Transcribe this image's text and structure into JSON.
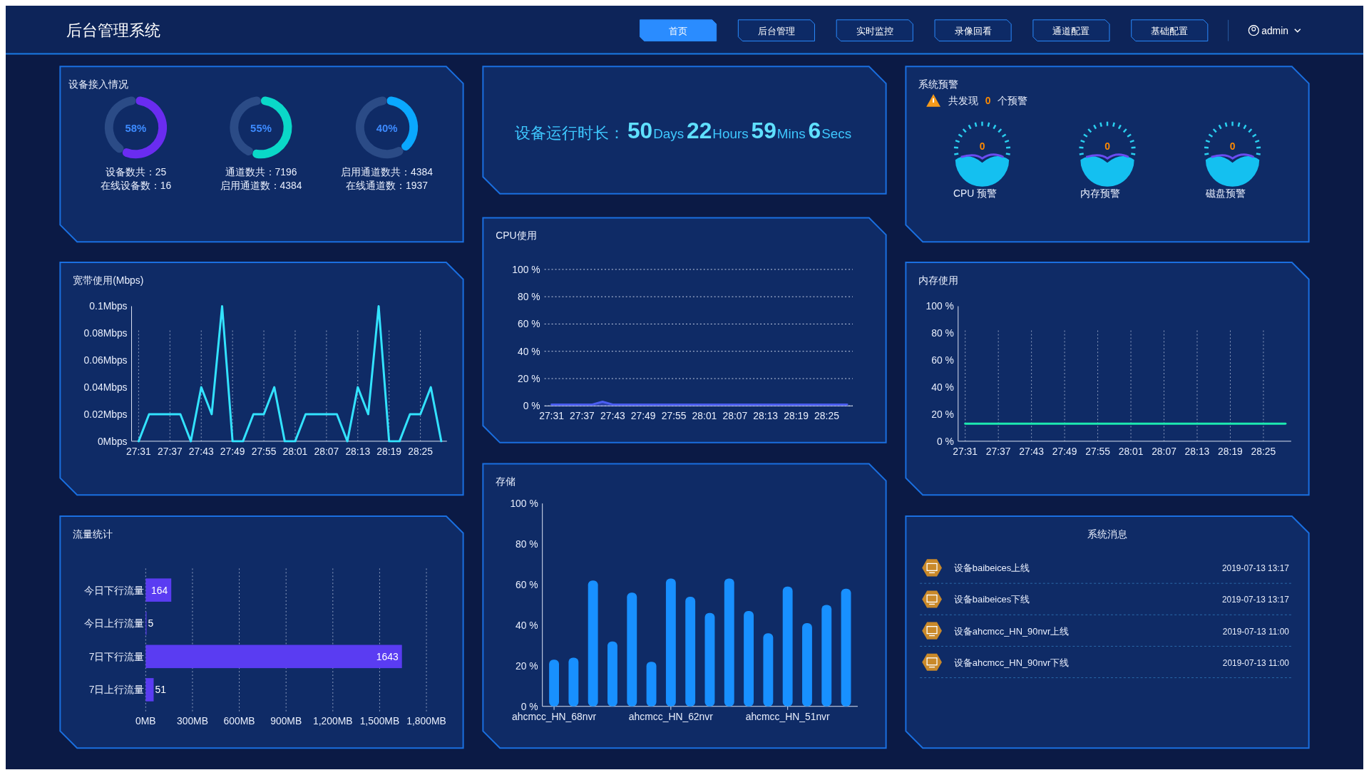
{
  "chart_data": [
    {
      "type": "other",
      "title": "后台管理系统",
      "annotations": [
        "首页",
        "后台管理",
        "实时监控",
        "录像回看",
        "通道配置",
        "基础配置",
        "admin"
      ]
    },
    {
      "type": "donut",
      "title": "设备接入情况",
      "categories": [
        null,
        null
      ],
      "values": [
        58,
        42
      ],
      "colors": [
        "#6a2cf0",
        "#2b4b86"
      ],
      "annotations": [
        "58%",
        "设备数共：25",
        "在线设备数：16"
      ]
    },
    {
      "type": "donut",
      "categories": [
        null,
        null
      ],
      "values": [
        55,
        45
      ],
      "colors": [
        "#0ad8c8",
        "#2b4b86"
      ],
      "annotations": [
        "55%",
        "通道数共：7196",
        "启用通道数：4384"
      ]
    },
    {
      "type": "donut",
      "categories": [
        null,
        null
      ],
      "values": [
        40,
        60
      ],
      "colors": [
        "#0aa8ff",
        "#2b4b86"
      ],
      "annotations": [
        "40%",
        "启用通道数共：4384",
        "在线通道数：1937"
      ]
    },
    {
      "type": "other",
      "title": "设备运行时长：",
      "annotations": [
        "50",
        "Days",
        "22",
        "Hours",
        "59",
        "Mins",
        "6",
        "Secs"
      ]
    },
    {
      "type": "other",
      "title": "系统预警",
      "annotations": [
        "共发现",
        "0",
        "个预警",
        "0",
        "CPU 预警",
        "0",
        "内存预警",
        "0",
        "磁盘预警"
      ]
    },
    {
      "type": "line",
      "title": "宽带使用(Mbps)",
      "categories": [
        "27:31",
        null,
        null,
        "27:37",
        null,
        null,
        "27:43",
        null,
        null,
        "27:49",
        null,
        null,
        "27:55",
        null,
        null,
        "28:01",
        null,
        null,
        "28:07",
        null,
        null,
        "28:13",
        null,
        null,
        "28:19",
        null,
        null,
        "28:25",
        null,
        null
      ],
      "values": [
        0,
        0.02,
        0.02,
        0.02,
        0.02,
        0,
        0.04,
        0.02,
        0.1,
        0,
        0,
        0.02,
        0.02,
        0.04,
        0,
        0,
        0.02,
        0.02,
        0.02,
        0.02,
        0,
        0.04,
        0.02,
        0.1,
        0,
        0,
        0.02,
        0.02,
        0.04,
        0
      ],
      "color": "#33e3ff",
      "ylim": [
        0,
        0.1
      ],
      "yticks": [
        {
          "value": 0,
          "label": "0Mbps"
        },
        {
          "value": 0.02,
          "label": "0.02Mbps"
        },
        {
          "value": 0.04,
          "label": "0.04Mbps"
        },
        {
          "value": 0.06,
          "label": "0.06Mbps"
        },
        {
          "value": 0.08,
          "label": "0.08Mbps"
        },
        {
          "value": 0.1,
          "label": "0.1Mbps"
        }
      ],
      "grid": "x"
    },
    {
      "type": "area",
      "title": "CPU使用",
      "categories": [
        "27:31",
        null,
        null,
        "27:37",
        null,
        null,
        "27:43",
        null,
        null,
        "27:49",
        null,
        null,
        "27:55",
        null,
        null,
        "28:01",
        null,
        null,
        "28:07",
        null,
        null,
        "28:13",
        null,
        null,
        "28:19",
        null,
        null,
        "28:25",
        null,
        null
      ],
      "values": [
        1,
        1,
        1,
        1,
        1,
        3,
        1,
        1,
        1,
        1,
        1,
        1,
        1,
        1,
        1,
        1,
        1,
        1,
        1,
        1,
        1,
        1,
        1,
        1,
        1,
        1,
        1,
        1,
        1,
        1
      ],
      "color": "#4a5df2",
      "ylim": [
        0,
        100
      ],
      "yticks": [
        {
          "value": 0,
          "label": "0 %"
        },
        {
          "value": 20,
          "label": "20 %"
        },
        {
          "value": 40,
          "label": "40 %"
        },
        {
          "value": 60,
          "label": "60 %"
        },
        {
          "value": 80,
          "label": "80 %"
        },
        {
          "value": 100,
          "label": "100 %"
        }
      ],
      "grid": "y"
    },
    {
      "type": "line",
      "title": "内存使用",
      "categories": [
        "27:31",
        null,
        null,
        "27:37",
        null,
        null,
        "27:43",
        null,
        null,
        "27:49",
        null,
        null,
        "27:55",
        null,
        null,
        "28:01",
        null,
        null,
        "28:07",
        null,
        null,
        "28:13",
        null,
        null,
        "28:19",
        null,
        null,
        "28:25",
        null,
        null
      ],
      "values": [
        13,
        13,
        13,
        13,
        13,
        13,
        13,
        13,
        13,
        13,
        13,
        13,
        13,
        13,
        13,
        13,
        13,
        13,
        13,
        13,
        13,
        13,
        13,
        13,
        13,
        13,
        13,
        13,
        13,
        13
      ],
      "color": "#1de9b0",
      "ylim": [
        0,
        100
      ],
      "yticks": [
        {
          "value": 0,
          "label": "0 %"
        },
        {
          "value": 20,
          "label": "20 %"
        },
        {
          "value": 40,
          "label": "40 %"
        },
        {
          "value": 60,
          "label": "60 %"
        },
        {
          "value": 80,
          "label": "80 %"
        },
        {
          "value": 100,
          "label": "100 %"
        }
      ],
      "grid": "x"
    },
    {
      "type": "bar",
      "orientation": "horizontal",
      "title": "流量统计",
      "categories": [
        "今日下行流量",
        "今日上行流量",
        "7日下行流量",
        "7日上行流量"
      ],
      "values": [
        164,
        5,
        1643,
        51
      ],
      "color": "#5a3cf2",
      "data_labels": true,
      "xlim": [
        0,
        1800
      ],
      "xticks": [
        {
          "value": 0,
          "label": "0MB"
        },
        {
          "value": 300,
          "label": "300MB"
        },
        {
          "value": 600,
          "label": "600MB"
        },
        {
          "value": 900,
          "label": "900MB"
        },
        {
          "value": 1200,
          "label": "1,200MB"
        },
        {
          "value": 1500,
          "label": "1,500MB"
        },
        {
          "value": 1800,
          "label": "1,800MB"
        }
      ],
      "grid": "x"
    },
    {
      "type": "bar",
      "title": "存储",
      "categories": [
        "ahcmcc_HN_68nvr",
        null,
        null,
        null,
        null,
        null,
        "ahcmcc_HN_62nvr",
        null,
        null,
        null,
        null,
        null,
        "ahcmcc_HN_51nvr",
        null,
        null,
        null
      ],
      "values": [
        23,
        24,
        62,
        32,
        56,
        22,
        63,
        54,
        46,
        63,
        47,
        36,
        59,
        41,
        50,
        58
      ],
      "color": "#1890ff",
      "ylim": [
        0,
        100
      ],
      "yticks": [
        {
          "value": 0,
          "label": "0 %"
        },
        {
          "value": 20,
          "label": "20 %"
        },
        {
          "value": 40,
          "label": "40 %"
        },
        {
          "value": 60,
          "label": "60 %"
        },
        {
          "value": 80,
          "label": "80 %"
        },
        {
          "value": 100,
          "label": "100 %"
        }
      ]
    },
    {
      "type": "other",
      "title": "系统消息",
      "annotations": [
        "设备baibeices上线",
        "2019-07-13 13:17",
        "设备baibeices下线",
        "2019-07-13 13:17",
        "设备ahcmcc_HN_90nvr上线",
        "2019-07-13 11:00",
        "设备ahcmcc_HN_90nvr下线",
        "2019-07-13 11:00"
      ]
    }
  ]
}
